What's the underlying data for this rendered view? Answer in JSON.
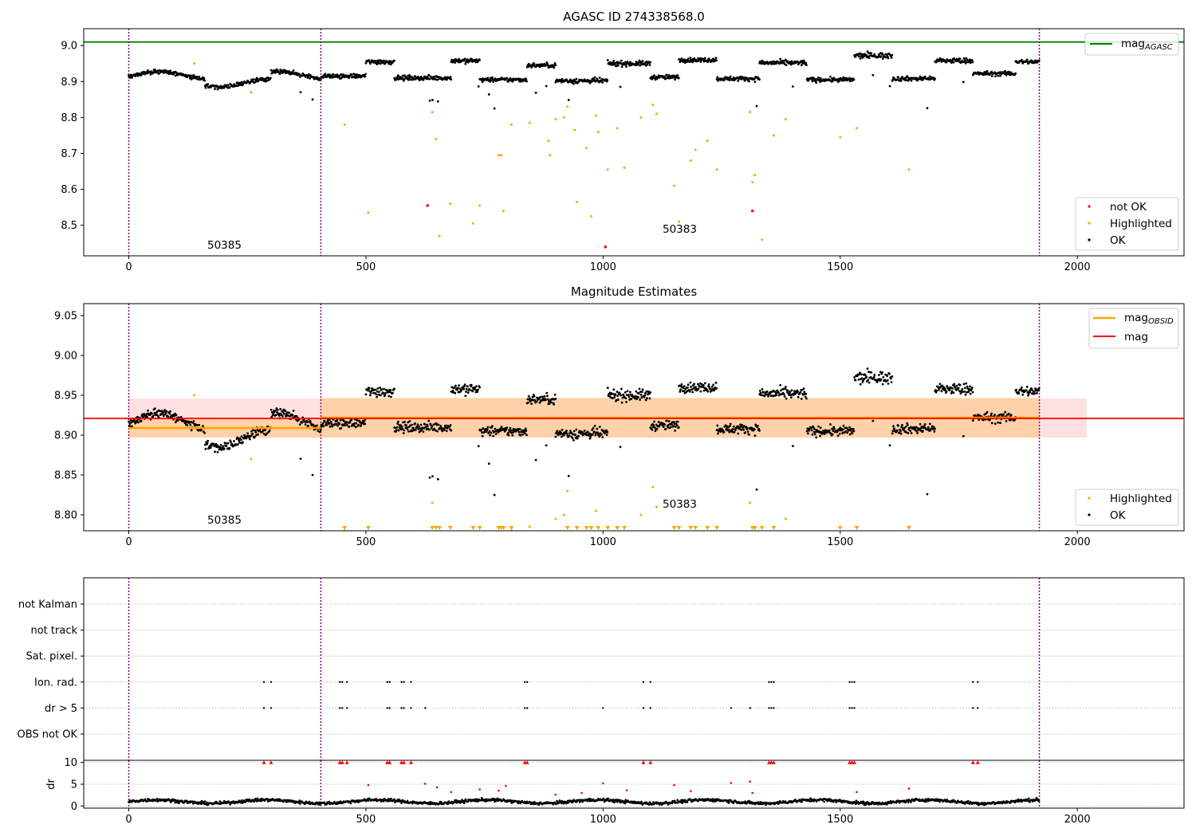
{
  "chart_data": [
    {
      "type": "scatter",
      "title": "AGASC ID 274338568.0",
      "xlim": [
        -95,
        2225
      ],
      "ylim": [
        8.415,
        9.047
      ],
      "xticks": [
        "0",
        "500",
        "1000",
        "1500",
        "2000"
      ],
      "yticks": [
        "8.5",
        "8.6",
        "8.7",
        "8.8",
        "8.9",
        "9.0"
      ],
      "vlines": [
        0,
        405,
        1920
      ],
      "annotations": [
        {
          "text": "50385",
          "x": 165,
          "y": 8.43
        },
        {
          "text": "50383",
          "x": 1125,
          "y": 8.475
        }
      ],
      "hline": {
        "name": "mag_AGASC",
        "value": 9.01,
        "color": "#008000"
      },
      "legend_top": "top-right",
      "legend_bottom": [
        "not OK",
        "Highlighted",
        "OK"
      ],
      "series": [
        {
          "name": "OK",
          "color": "#000000",
          "segments": [
            [
              0,
              405,
              8.915,
              0.02
            ],
            [
              405,
              500,
              8.915,
              0.006
            ],
            [
              500,
              560,
              8.955,
              0.007
            ],
            [
              560,
              680,
              8.91,
              0.006
            ],
            [
              680,
              740,
              8.958,
              0.007
            ],
            [
              740,
              840,
              8.905,
              0.006
            ],
            [
              840,
              900,
              8.945,
              0.006
            ],
            [
              900,
              1010,
              8.902,
              0.007
            ],
            [
              1010,
              1100,
              8.95,
              0.007
            ],
            [
              1100,
              1160,
              8.912,
              0.006
            ],
            [
              1160,
              1240,
              8.96,
              0.006
            ],
            [
              1240,
              1330,
              8.908,
              0.006
            ],
            [
              1330,
              1430,
              8.952,
              0.007
            ],
            [
              1430,
              1530,
              8.905,
              0.006
            ],
            [
              1530,
              1610,
              8.972,
              0.008
            ],
            [
              1610,
              1700,
              8.908,
              0.006
            ],
            [
              1700,
              1780,
              8.958,
              0.007
            ],
            [
              1780,
              1870,
              8.922,
              0.006
            ],
            [
              1870,
              1920,
              8.955,
              0.006
            ]
          ]
        },
        {
          "name": "Highlighted",
          "color": "#ffa500",
          "points": [
            [
              138,
              8.95
            ],
            [
              258,
              8.87
            ],
            [
              455,
              8.78
            ],
            [
              505,
              8.535
            ],
            [
              640,
              8.815
            ],
            [
              648,
              8.74
            ],
            [
              655,
              8.47
            ],
            [
              678,
              8.56
            ],
            [
              726,
              8.505
            ],
            [
              740,
              8.555
            ],
            [
              780,
              8.695
            ],
            [
              785,
              8.695
            ],
            [
              790,
              8.54
            ],
            [
              807,
              8.78
            ],
            [
              845,
              8.785
            ],
            [
              885,
              8.735
            ],
            [
              888,
              8.695
            ],
            [
              900,
              8.795
            ],
            [
              918,
              8.8
            ],
            [
              925,
              8.83
            ],
            [
              940,
              8.765
            ],
            [
              945,
              8.565
            ],
            [
              965,
              8.715
            ],
            [
              975,
              8.525
            ],
            [
              985,
              8.805
            ],
            [
              990,
              8.76
            ],
            [
              1010,
              8.655
            ],
            [
              1030,
              8.77
            ],
            [
              1045,
              8.66
            ],
            [
              1080,
              8.8
            ],
            [
              1105,
              8.835
            ],
            [
              1113,
              8.81
            ],
            [
              1150,
              8.61
            ],
            [
              1160,
              8.51
            ],
            [
              1185,
              8.68
            ],
            [
              1195,
              8.71
            ],
            [
              1220,
              8.735
            ],
            [
              1240,
              8.655
            ],
            [
              1310,
              8.815
            ],
            [
              1315,
              8.62
            ],
            [
              1320,
              8.64
            ],
            [
              1335,
              8.46
            ],
            [
              1360,
              8.75
            ],
            [
              1385,
              8.795
            ],
            [
              1500,
              8.745
            ],
            [
              1535,
              8.77
            ],
            [
              1645,
              8.655
            ]
          ]
        },
        {
          "name": "not OK",
          "color": "#ff0000",
          "points": [
            [
              630,
              8.555
            ],
            [
              1005,
              8.44
            ],
            [
              1315,
              8.54
            ]
          ]
        }
      ]
    },
    {
      "type": "scatter",
      "title": "Magnitude Estimates",
      "xlim": [
        -95,
        2225
      ],
      "ylim": [
        8.78,
        9.065
      ],
      "xticks": [
        "0",
        "500",
        "1000",
        "1500",
        "2000"
      ],
      "yticks": [
        "8.80",
        "8.85",
        "8.90",
        "8.95",
        "9.00",
        "9.05"
      ],
      "vlines": [
        0,
        405,
        1920
      ],
      "annotations": [
        {
          "text": "50385",
          "x": 165,
          "y": 8.792
        },
        {
          "text": "50383",
          "x": 1125,
          "y": 8.812
        }
      ],
      "lines": [
        {
          "name": "mag_OBSID",
          "color": "#ffa500",
          "segments": [
            [
              0,
              405,
              8.909
            ],
            [
              405,
              1920,
              8.922
            ]
          ]
        },
        {
          "name": "mag",
          "color": "#ff0000",
          "segments": [
            [
              -95,
              2225,
              8.921
            ]
          ]
        }
      ],
      "bands": [
        {
          "color": "#ff0000",
          "opacity": 0.12,
          "x": [
            0,
            2020
          ],
          "y": [
            8.897,
            8.946
          ]
        },
        {
          "color": "#ffa500",
          "opacity": 0.25,
          "x": [
            0,
            405
          ],
          "y": [
            8.897,
            8.921
          ]
        },
        {
          "color": "#ffa500",
          "opacity": 0.25,
          "x": [
            405,
            1920
          ],
          "y": [
            8.897,
            8.947
          ]
        }
      ],
      "legend_top": [
        "mag_OBSID",
        "mag"
      ],
      "legend_bottom": [
        "Highlighted",
        "OK"
      ],
      "series": [
        {
          "name": "OK",
          "color": "#000000"
        },
        {
          "name": "Highlighted",
          "color": "#ffa500",
          "offscale_markers": [
            455,
            505,
            640,
            648,
            655,
            678,
            726,
            740,
            780,
            785,
            790,
            807,
            925,
            945,
            965,
            975,
            990,
            1010,
            1030,
            1045,
            1150,
            1160,
            1185,
            1195,
            1220,
            1240,
            1315,
            1320,
            1335,
            1360,
            1500,
            1535,
            1645
          ]
        }
      ]
    },
    {
      "type": "scatter",
      "title": "",
      "xlim": [
        -95,
        2225
      ],
      "categories": [
        "not Kalman",
        "not track",
        "Sat. pixel.",
        "Ion. rad.",
        "dr > 5",
        "OBS not OK"
      ],
      "vlines": [
        0,
        405,
        1920
      ],
      "flags": {
        "Ion. rad.": [
          285,
          300,
          445,
          450,
          460,
          545,
          550,
          575,
          580,
          595,
          835,
          840,
          1085,
          1100,
          1350,
          1355,
          1360,
          1520,
          1525,
          1530,
          1780,
          1790
        ],
        "dr > 5": [
          285,
          300,
          445,
          450,
          460,
          545,
          550,
          575,
          580,
          595,
          625,
          835,
          840,
          1000,
          1085,
          1100,
          1270,
          1310,
          1350,
          1355,
          1360,
          1520,
          1525,
          1530,
          1780,
          1790
        ]
      }
    },
    {
      "type": "scatter",
      "title": "",
      "ylabel": "dr",
      "xlim": [
        -95,
        2225
      ],
      "ylim": [
        -0.5,
        10.5
      ],
      "xticks": [
        "0",
        "500",
        "1000",
        "1500",
        "2000"
      ],
      "yticks": [
        "0",
        "5",
        "10"
      ],
      "vlines": [
        0,
        405,
        1920
      ],
      "series": [
        {
          "name": "OK",
          "color": "#000000",
          "baseline": 1.0
        },
        {
          "name": "dr > 5",
          "color": "#ff0000",
          "points": [
            [
              285,
              10
            ],
            [
              300,
              10
            ],
            [
              445,
              10
            ],
            [
              450,
              10
            ],
            [
              460,
              10
            ],
            [
              545,
              10
            ],
            [
              550,
              10
            ],
            [
              575,
              10
            ],
            [
              580,
              10
            ],
            [
              595,
              10
            ],
            [
              835,
              10
            ],
            [
              840,
              10
            ],
            [
              1085,
              10
            ],
            [
              1100,
              10
            ],
            [
              1350,
              10
            ],
            [
              1355,
              10
            ],
            [
              1360,
              10
            ],
            [
              1520,
              10
            ],
            [
              1525,
              10
            ],
            [
              1530,
              10
            ],
            [
              1780,
              10
            ],
            [
              1790,
              10
            ],
            [
              505,
              4.8
            ],
            [
              625,
              5.1
            ],
            [
              650,
              4.3
            ],
            [
              680,
              3.2
            ],
            [
              740,
              3.8
            ],
            [
              780,
              3.5
            ],
            [
              795,
              4.6
            ],
            [
              900,
              2.6
            ],
            [
              955,
              3.0
            ],
            [
              1000,
              5.2
            ],
            [
              1050,
              3.6
            ],
            [
              1150,
              4.8
            ],
            [
              1185,
              3.4
            ],
            [
              1270,
              5.3
            ],
            [
              1310,
              5.6
            ],
            [
              1315,
              3.0
            ],
            [
              1535,
              3.2
            ],
            [
              1645,
              4.0
            ]
          ]
        }
      ]
    }
  ]
}
